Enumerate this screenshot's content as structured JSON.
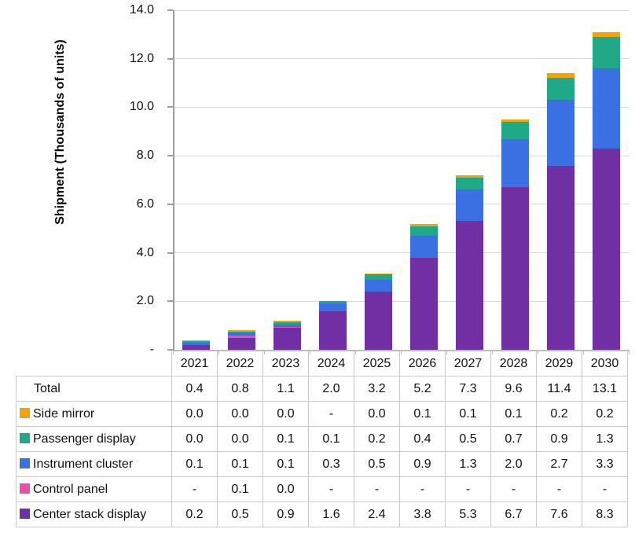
{
  "chart_data": {
    "type": "bar",
    "stacked": true,
    "title": "",
    "ylabel": "Shipment (Thousands of units)",
    "categories": [
      "2021",
      "2022",
      "2023",
      "2024",
      "2025",
      "2026",
      "2027",
      "2028",
      "2029",
      "2030"
    ],
    "series": [
      {
        "name": "Side mirror",
        "color": "#EFA30C",
        "values": [
          0.0,
          0.0,
          0.0,
          null,
          0.0,
          0.1,
          0.1,
          0.1,
          0.2,
          0.2
        ],
        "display": [
          "0.0",
          "0.0",
          "0.0",
          "-",
          "0.0",
          "0.1",
          "0.1",
          "0.1",
          "0.2",
          "0.2"
        ]
      },
      {
        "name": "Passenger display",
        "color": "#21A886",
        "values": [
          0.0,
          0.0,
          0.1,
          0.1,
          0.2,
          0.4,
          0.5,
          0.7,
          0.9,
          1.3
        ],
        "display": [
          "0.0",
          "0.0",
          "0.1",
          "0.1",
          "0.2",
          "0.4",
          "0.5",
          "0.7",
          "0.9",
          "1.3"
        ]
      },
      {
        "name": "Instrument cluster",
        "color": "#3A70E2",
        "values": [
          0.1,
          0.1,
          0.1,
          0.3,
          0.5,
          0.9,
          1.3,
          2.0,
          2.7,
          3.3
        ],
        "display": [
          "0.1",
          "0.1",
          "0.1",
          "0.3",
          "0.5",
          "0.9",
          "1.3",
          "2.0",
          "2.7",
          "3.3"
        ]
      },
      {
        "name": "Control panel",
        "color": "#EA4FAF",
        "values": [
          null,
          0.1,
          0.0,
          null,
          null,
          null,
          null,
          null,
          null,
          null
        ],
        "display": [
          "-",
          "0.1",
          "0.0",
          "-",
          "-",
          "-",
          "-",
          "-",
          "-",
          "-"
        ]
      },
      {
        "name": "Center stack display",
        "color": "#7030A3",
        "values": [
          0.2,
          0.5,
          0.9,
          1.6,
          2.4,
          3.8,
          5.3,
          6.7,
          7.6,
          8.3
        ],
        "display": [
          "0.2",
          "0.5",
          "0.9",
          "1.6",
          "2.4",
          "3.8",
          "5.3",
          "6.7",
          "7.6",
          "8.3"
        ]
      }
    ],
    "totals": {
      "label": "Total",
      "display": [
        "0.4",
        "0.8",
        "1.1",
        "2.0",
        "3.2",
        "5.2",
        "7.3",
        "9.6",
        "11.4",
        "13.1"
      ]
    },
    "y_axis": {
      "min": 0,
      "max": 14,
      "interval": 2,
      "ticks": [
        {
          "value": 14,
          "label": "14.0"
        },
        {
          "value": 12,
          "label": "12.0"
        },
        {
          "value": 10,
          "label": "10.0"
        },
        {
          "value": 8,
          "label": "8.0"
        },
        {
          "value": 6,
          "label": "6.0"
        },
        {
          "value": 4,
          "label": "4.0"
        },
        {
          "value": 2,
          "label": "2.0"
        },
        {
          "value": 0,
          "label": "-"
        }
      ]
    },
    "grid": true,
    "legend_position": "table-rows-left"
  },
  "colors": {
    "gridline": "#D9D9D9",
    "axis_line": "#9E9E9E",
    "table_border": "#C8C8C8",
    "text": "#111111"
  }
}
